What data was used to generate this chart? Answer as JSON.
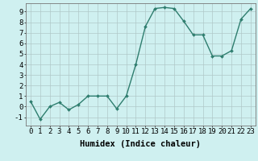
{
  "x": [
    0,
    1,
    2,
    3,
    4,
    5,
    6,
    7,
    8,
    9,
    10,
    11,
    12,
    13,
    14,
    15,
    16,
    17,
    18,
    19,
    20,
    21,
    22,
    23
  ],
  "y": [
    0.5,
    -1.2,
    0.0,
    0.4,
    -0.3,
    0.2,
    1.0,
    1.0,
    1.0,
    -0.2,
    1.0,
    4.0,
    7.6,
    9.3,
    9.4,
    9.3,
    8.1,
    6.8,
    6.8,
    4.8,
    4.8,
    5.3,
    8.3,
    9.3
  ],
  "bg_color": "#cff0f0",
  "line_color": "#2e7d6e",
  "marker_color": "#2e7d6e",
  "xlabel": "Humidex (Indice chaleur)",
  "ylim": [
    -1.8,
    9.8
  ],
  "xlim": [
    -0.5,
    23.5
  ],
  "yticks": [
    -1,
    0,
    1,
    2,
    3,
    4,
    5,
    6,
    7,
    8,
    9
  ],
  "xticks": [
    0,
    1,
    2,
    3,
    4,
    5,
    6,
    7,
    8,
    9,
    10,
    11,
    12,
    13,
    14,
    15,
    16,
    17,
    18,
    19,
    20,
    21,
    22,
    23
  ],
  "grid_color": "#b0c8c8",
  "xlabel_fontsize": 7.5,
  "tick_fontsize": 6.5,
  "linewidth": 1.0,
  "markersize": 2.0
}
